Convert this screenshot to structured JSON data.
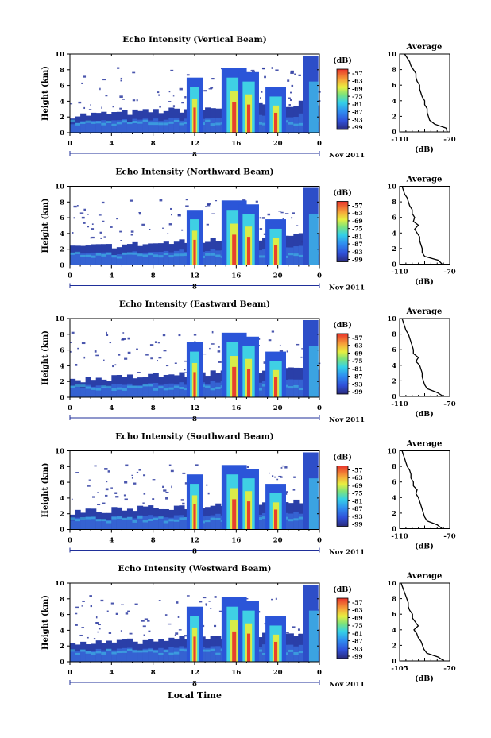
{
  "figure": {
    "xlabel_bottom": "Local Time",
    "date_label": "Nov 2011",
    "day_label": "8",
    "xticks": [
      "0",
      "4",
      "8",
      "12",
      "16",
      "20",
      "0"
    ],
    "yticks": [
      "0",
      "2",
      "4",
      "6",
      "8",
      "10"
    ],
    "ylabel": "Height (km)",
    "colorbar_unit": "(dB)",
    "colorbar_ticks": [
      "-57",
      "-63",
      "-69",
      "-75",
      "-81",
      "-87",
      "-93",
      "-99"
    ],
    "avg_title": "Average",
    "avg_xlabel": "(dB)"
  },
  "chart_data": [
    {
      "type": "heatmap",
      "title": "Echo Intensity (Vertical Beam)",
      "x_range_hours": [
        0,
        24
      ],
      "y_range_km": [
        0,
        10
      ],
      "color_range_db": [
        -99,
        -57
      ],
      "profile": {
        "title": "Average",
        "xticks": [
          "-110",
          "-70"
        ],
        "xlim": [
          -110,
          -70
        ],
        "height_km": [
          0,
          0.5,
          1,
          1.5,
          2,
          2.5,
          3,
          3.5,
          4,
          4.5,
          5,
          5.5,
          6,
          6.5,
          7,
          7.5,
          8,
          8.5,
          9,
          9.5,
          10
        ],
        "db": [
          -72,
          -73,
          -82,
          -86,
          -87,
          -88,
          -88,
          -90,
          -90,
          -92,
          -93,
          -94,
          -94,
          -96,
          -97,
          -97,
          -99,
          -101,
          -102,
          -104,
          -106
        ]
      }
    },
    {
      "type": "heatmap",
      "title": "Echo Intensity (Northward Beam)",
      "x_range_hours": [
        0,
        24
      ],
      "y_range_km": [
        0,
        10
      ],
      "color_range_db": [
        -99,
        -57
      ],
      "profile": {
        "title": "Average",
        "xticks": [
          "-110",
          "-70"
        ],
        "xlim": [
          -110,
          -70
        ],
        "height_km": [
          0,
          0.5,
          1,
          1.5,
          2,
          2.5,
          3,
          3.5,
          4,
          4.5,
          5,
          5.5,
          6,
          6.5,
          7,
          7.5,
          8,
          8.5,
          9,
          9.5,
          10
        ],
        "db": [
          -76,
          -79,
          -90,
          -92,
          -92,
          -93,
          -94,
          -94,
          -96,
          -98,
          -95,
          -99,
          -98,
          -100,
          -100,
          -102,
          -103,
          -104,
          -106,
          -107,
          -108
        ]
      }
    },
    {
      "type": "heatmap",
      "title": "Echo Intensity (Eastward Beam)",
      "x_range_hours": [
        0,
        24
      ],
      "y_range_km": [
        0,
        10
      ],
      "color_range_db": [
        -99,
        -57
      ],
      "profile": {
        "title": "Average",
        "xticks": [
          "-110",
          "-70"
        ],
        "xlim": [
          -110,
          -70
        ],
        "height_km": [
          0,
          0.5,
          1,
          1.5,
          2,
          2.5,
          3,
          3.5,
          4,
          4.5,
          5,
          5.5,
          6,
          6.5,
          7,
          7.5,
          8,
          8.5,
          9,
          9.5,
          10
        ],
        "db": [
          -75,
          -80,
          -88,
          -90,
          -91,
          -92,
          -92,
          -93,
          -94,
          -97,
          -95,
          -99,
          -99,
          -100,
          -101,
          -102,
          -103,
          -105,
          -106,
          -107,
          -108
        ]
      }
    },
    {
      "type": "heatmap",
      "title": "Echo Intensity (Southward Beam)",
      "x_range_hours": [
        0,
        24
      ],
      "y_range_km": [
        0,
        10
      ],
      "color_range_db": [
        -99,
        -57
      ],
      "profile": {
        "title": "Average",
        "xticks": [
          "-110",
          "-70"
        ],
        "xlim": [
          -110,
          -70
        ],
        "height_km": [
          0,
          0.5,
          1,
          1.5,
          2,
          2.5,
          3,
          3.5,
          4,
          4.5,
          5,
          5.5,
          6,
          6.5,
          7,
          7.5,
          8,
          8.5,
          9,
          9.5,
          10
        ],
        "db": [
          -76,
          -80,
          -88,
          -90,
          -91,
          -92,
          -93,
          -94,
          -95,
          -97,
          -96,
          -99,
          -99,
          -101,
          -101,
          -102,
          -104,
          -105,
          -106,
          -107,
          -108
        ]
      }
    },
    {
      "type": "heatmap",
      "title": "Echo Intensity (Westward Beam)",
      "x_range_hours": [
        0,
        24
      ],
      "y_range_km": [
        0,
        10
      ],
      "color_range_db": [
        -99,
        -57
      ],
      "profile": {
        "title": "Average",
        "xticks": [
          "-105",
          "-70"
        ],
        "xlim": [
          -105,
          -70
        ],
        "height_km": [
          0,
          0.5,
          1,
          1.5,
          2,
          2.5,
          3,
          3.5,
          4,
          4.5,
          5,
          5.5,
          6,
          6.5,
          7,
          7.5,
          8,
          8.5,
          9,
          9.5,
          10
        ],
        "db": [
          -74,
          -78,
          -86,
          -88,
          -89,
          -90,
          -92,
          -93,
          -95,
          -92,
          -94,
          -96,
          -96,
          -98,
          -99,
          -99,
          -100,
          -101,
          -102,
          -103,
          -104
        ]
      }
    }
  ]
}
